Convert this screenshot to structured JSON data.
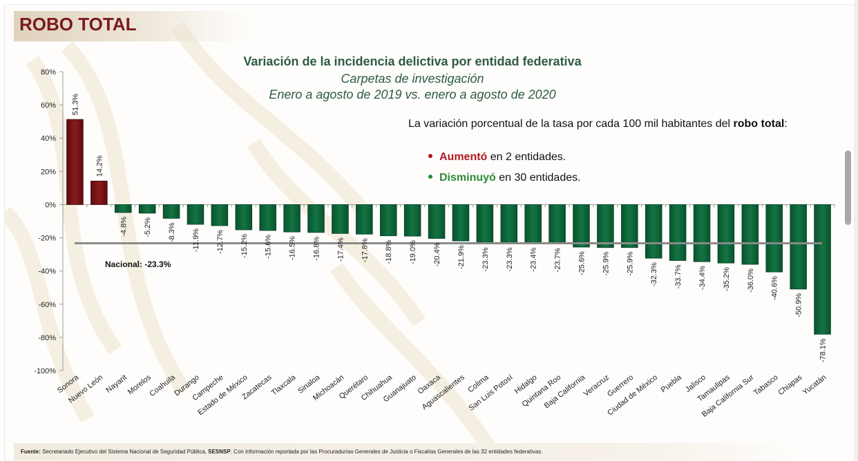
{
  "slide": {
    "section_title": "ROBO TOTAL",
    "title": "Variación de la incidencia delictiva por entidad federativa",
    "subtitle_1": "Carpetas de investigación",
    "subtitle_2": "Enero a agosto de 2019 vs. enero a agosto de 2020",
    "note": {
      "text_before": "La variación porcentual de la tasa por cada 100 mil habitantes del ",
      "text_bold": "robo total",
      "text_after": ":"
    },
    "bullets": [
      {
        "highlight": "Aumentó",
        "rest": " en 2 entidades.",
        "color": "#b0181f"
      },
      {
        "highlight": "Disminuyó",
        "rest": " en 30 entidades.",
        "color": "#2e8b35"
      }
    ],
    "footer": {
      "label": "Fuente:",
      "text_1": " Secretariado Ejecutivo del Sistema Nacional de Seguridad Pública, ",
      "bold": "SESNSP",
      "text_2": ". Con información reportada por las Procuradurías Generales de Justicia o Fiscalías Generales de las 32 entidades federativas."
    }
  },
  "chart_data": {
    "type": "bar",
    "title": "Variación de la incidencia delictiva por entidad federativa",
    "xlabel": "",
    "ylabel": "",
    "ylim": [
      -100,
      80
    ],
    "yticks": [
      80,
      60,
      40,
      20,
      0,
      -20,
      -40,
      -60,
      -80,
      -100
    ],
    "ytick_labels": [
      "80%",
      "60%",
      "40%",
      "20%",
      "0%",
      "-20%",
      "-40%",
      "-60%",
      "-80%",
      "-100%"
    ],
    "grid": false,
    "categories": [
      "Sonora",
      "Nuevo León",
      "Nayarit",
      "Morelos",
      "Coahuila",
      "Durango",
      "Campeche",
      "Estado de México",
      "Zacatecas",
      "Tlaxcala",
      "Sinaloa",
      "Michoacán",
      "Querétaro",
      "Chihuahua",
      "Guanajuato",
      "Oaxaca",
      "Aguascalientes",
      "Colima",
      "San Luis Potosí",
      "Hidalgo",
      "Quintana Roo",
      "Baja California",
      "Veracruz",
      "Guerrero",
      "Ciudad de México",
      "Puebla",
      "Jalisco",
      "Tamaulipas",
      "Baja California Sur",
      "Tabasco",
      "Chiapas",
      "Yucatán"
    ],
    "values": [
      51.3,
      14.2,
      -4.8,
      -5.2,
      -8.3,
      -11.9,
      -12.7,
      -15.2,
      -15.6,
      -16.5,
      -16.8,
      -17.4,
      -17.8,
      -18.8,
      -19.0,
      -20.4,
      -21.9,
      -23.3,
      -23.3,
      -23.4,
      -23.7,
      -25.6,
      -25.9,
      -25.9,
      -32.3,
      -33.7,
      -34.4,
      -35.2,
      -36.0,
      -40.6,
      -50.9,
      -78.1
    ],
    "data_labels": [
      "51.3%",
      "14.2%",
      "-4.8%",
      "-5.2%",
      "-8.3%",
      "-11.9%",
      "-12.7%",
      "-15.2%",
      "-15.6%",
      "-16.5%",
      "-16.8%",
      "-17.4%",
      "-17.8%",
      "-18.8%",
      "-19.0%",
      "-20.4%",
      "-21.9%",
      "-23.3%",
      "-23.3%",
      "-23.4%",
      "-23.7%",
      "-25.6%",
      "-25.9%",
      "-25.9%",
      "-32.3%",
      "-33.7%",
      "-34.4%",
      "-35.2%",
      "-36.0%",
      "-40.6%",
      "-50.9%",
      "-78.1%"
    ],
    "colors": {
      "increase": "#7b1416",
      "decrease": "#0f6b3c",
      "reference_line": "#8a8a8a"
    },
    "reference_line": {
      "value": -23.3,
      "label": "Nacional: -23.3%"
    }
  }
}
